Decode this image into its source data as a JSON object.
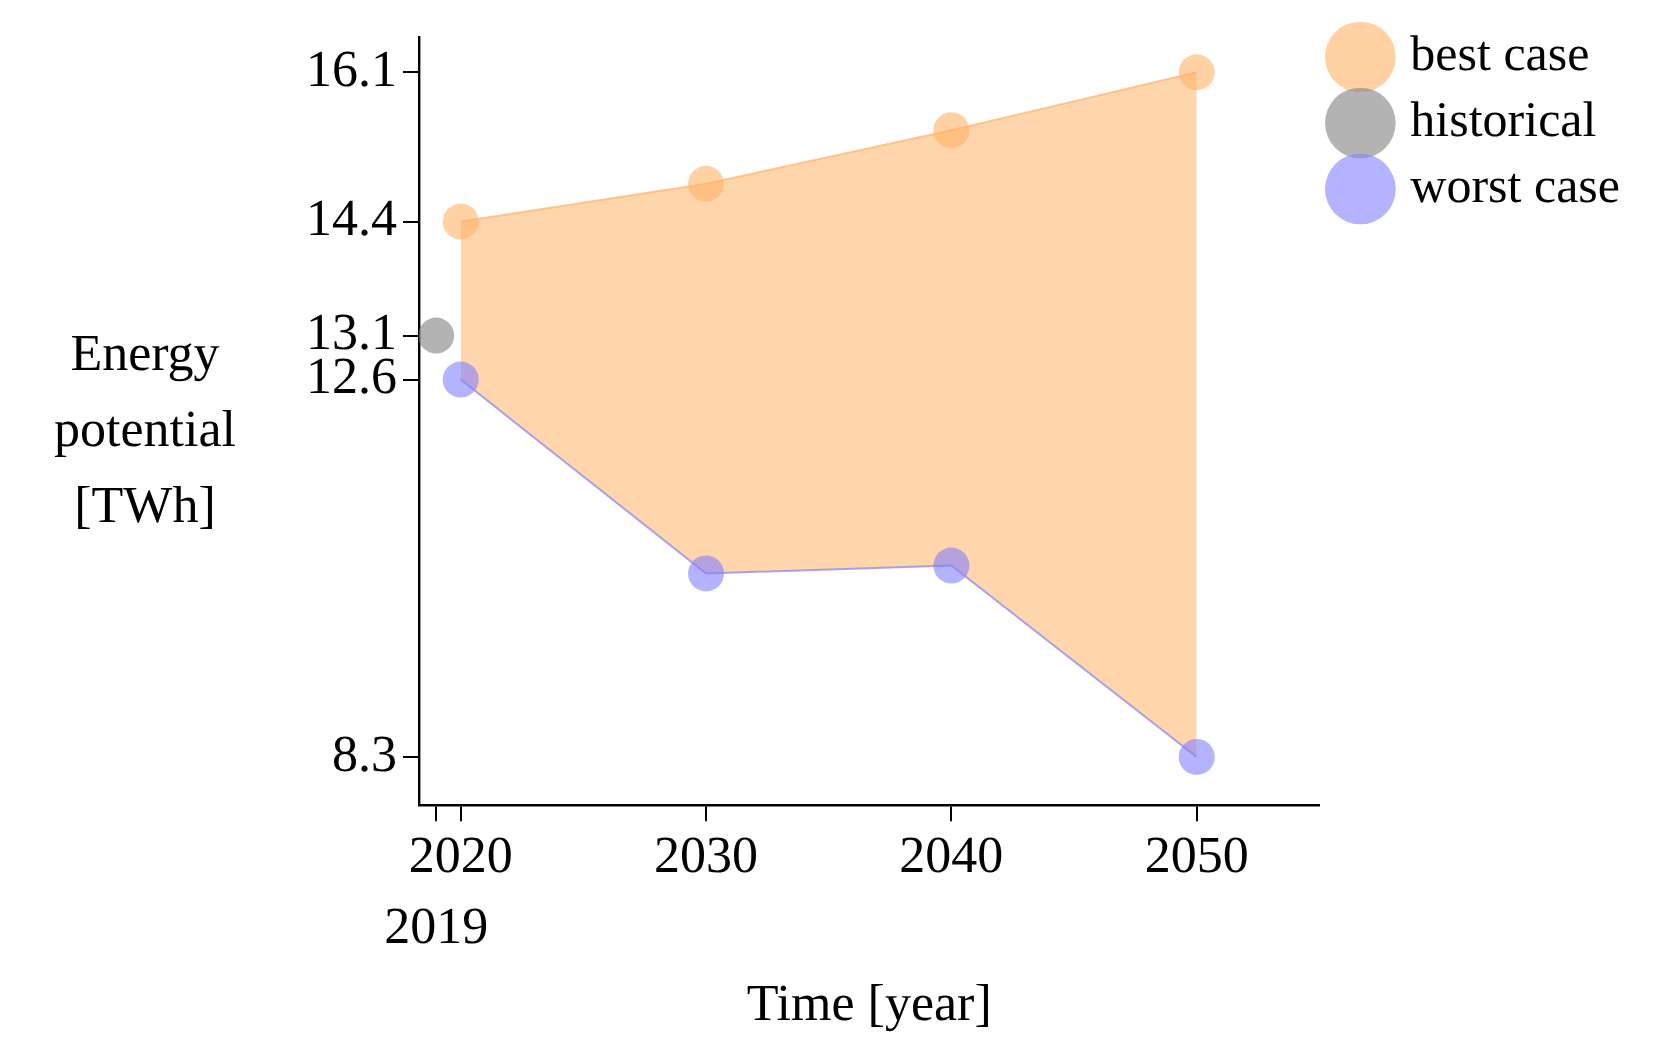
{
  "chart_data": {
    "type": "line",
    "xlabel": "Time [year]",
    "ylabel": "Energy potential [TWh]",
    "xlim": [
      2018.3,
      2055
    ],
    "xticks": [
      {
        "value": 2019,
        "label": null
      },
      2020,
      2030,
      2040,
      2050
    ],
    "annotations": [
      "2019"
    ],
    "ylim": [
      7.75,
      16.5
    ],
    "yticks": [
      8.3,
      12.6,
      13.1,
      14.4,
      16.1
    ],
    "grid": false,
    "legend": "right",
    "marker": "circle",
    "series": [
      {
        "name": "best case",
        "color": "#ffb366",
        "x": [
          2020,
          2030,
          2040,
          2050
        ],
        "values": [
          14.4,
          14.83,
          15.44,
          16.1
        ],
        "lower": [
          12.6,
          10.39,
          10.48,
          8.3
        ],
        "upper": [
          14.4,
          14.83,
          15.44,
          16.1
        ]
      },
      {
        "name": "historical",
        "color": "#808080",
        "x": [
          2019
        ],
        "values": [
          13.1
        ]
      },
      {
        "name": "worst case",
        "color": "#8080ff",
        "x": [
          2020,
          2030,
          2040,
          2050
        ],
        "values": [
          12.6,
          10.39,
          10.48,
          8.3
        ]
      }
    ]
  }
}
